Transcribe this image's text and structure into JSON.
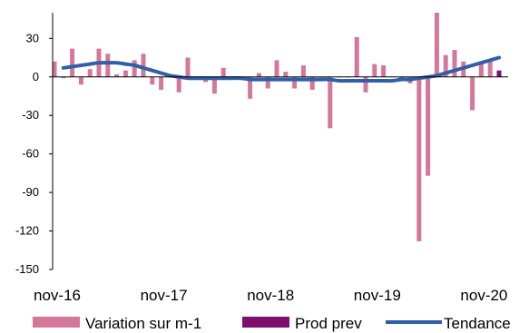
{
  "chart_data": {
    "type": "bar",
    "title": "",
    "xlabel": "",
    "ylabel": "",
    "ylim": [
      -150,
      50
    ],
    "yticks": [
      30,
      0,
      -30,
      -60,
      -90,
      -120,
      -150
    ],
    "xtick_labels": [
      "nov-16",
      "nov-17",
      "nov-18",
      "nov-19",
      "nov-20"
    ],
    "xtick_month_index": [
      0,
      12,
      24,
      36,
      48
    ],
    "grid": false,
    "legend_position": "bottom",
    "series": [
      {
        "name": "Variation sur m-1",
        "type": "bar",
        "color": "#d4779b",
        "values": [
          12,
          -1,
          22,
          -6,
          6,
          22,
          18,
          2,
          5,
          13,
          18,
          -6,
          -10,
          0,
          -12,
          15,
          -2,
          -4,
          -13,
          7,
          -2,
          0,
          -17,
          3,
          -9,
          13,
          4,
          -9,
          9,
          -10,
          0,
          -40,
          0,
          0,
          31,
          -12,
          10,
          9,
          0,
          -3,
          -5,
          -128,
          -77,
          50,
          17,
          21,
          12,
          -26,
          11,
          14
        ]
      },
      {
        "name": "Prod prev",
        "type": "bar",
        "color": "#7d0f6e",
        "start_index": 50,
        "values": [
          5
        ]
      },
      {
        "name": "Tendance",
        "type": "line",
        "color": "#2f5fa8",
        "start_index": 1,
        "values": [
          7,
          8,
          9,
          10,
          11,
          11,
          11,
          10,
          9,
          7,
          5,
          3,
          1,
          0,
          -1,
          -1,
          -1,
          -1,
          -1,
          -1,
          -1,
          -2,
          -2,
          -2,
          -2,
          -2,
          -2,
          -2,
          -2,
          -2,
          -2,
          -3,
          -3,
          -3,
          -3,
          -3,
          -3,
          -3,
          -2,
          -2,
          -1,
          0,
          1,
          3,
          5,
          7,
          9,
          11,
          13,
          15
        ]
      }
    ]
  }
}
